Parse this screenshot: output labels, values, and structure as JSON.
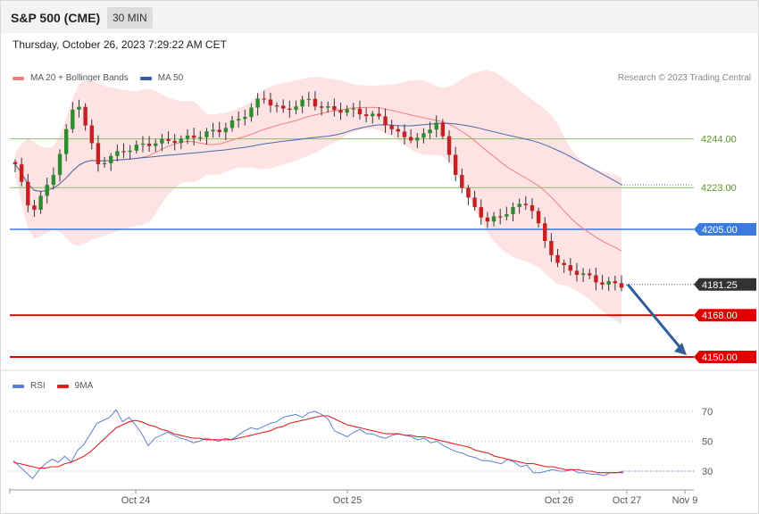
{
  "header": {
    "symbol": "S&P 500 (CME)",
    "interval": "30 MIN",
    "datetime": "Thursday, October 26, 2023 7:29:22 AM CET"
  },
  "legend": {
    "main": [
      {
        "label": "MA 20 + Bollinger Bands",
        "color": "#f08080"
      },
      {
        "label": "MA 50",
        "color": "#3a5fa0"
      }
    ],
    "rsi": [
      {
        "label": "RSI",
        "color": "#5b7fd6"
      },
      {
        "label": "9MA",
        "color": "#e02020"
      }
    ],
    "copyright": "Research © 2023 Trading Central"
  },
  "chart_data": [
    {
      "type": "candlestick",
      "x_axis": {
        "ticks": [
          "Oct 24",
          "Oct 25",
          "Oct 26",
          "Oct 27",
          "Nov 9"
        ]
      },
      "y_range": [
        4145,
        4265
      ],
      "levels": [
        {
          "value": 4244.0,
          "label": "4244.00",
          "color": "#8cc060",
          "style": "thin"
        },
        {
          "value": 4223.0,
          "label": "4223.00",
          "color": "#8cc060",
          "style": "thin"
        },
        {
          "value": 4205.0,
          "label": "4205.00",
          "color": "#3b7be0",
          "style": "support"
        },
        {
          "value": 4181.25,
          "label": "4181.25",
          "color": "#333333",
          "style": "last"
        },
        {
          "value": 4168.0,
          "label": "4168.00",
          "color": "#e00000",
          "style": "target"
        },
        {
          "value": 4150.0,
          "label": "4150.00",
          "color": "#e00000",
          "style": "target"
        }
      ],
      "projection": {
        "from": 4181.25,
        "to": 4150.0,
        "color": "#2f5d9a"
      }
    },
    {
      "type": "line",
      "name": "RSI",
      "y_ticks": [
        70,
        50,
        30
      ],
      "series": [
        {
          "name": "RSI",
          "color": "#5b7fd6",
          "values": [
            37,
            33,
            29,
            25,
            31,
            35,
            38,
            36,
            40,
            36,
            44,
            48,
            55,
            62,
            64,
            66,
            71,
            63,
            66,
            61,
            55,
            47,
            52,
            54,
            56,
            54,
            52,
            51,
            49,
            50,
            52,
            51,
            50,
            52,
            51,
            54,
            57,
            59,
            58,
            60,
            62,
            63,
            66,
            67,
            68,
            66,
            69,
            70,
            68,
            65,
            57,
            55,
            53,
            56,
            58,
            55,
            55,
            53,
            52,
            54,
            55,
            54,
            53,
            51,
            52,
            49,
            50,
            47,
            45,
            43,
            42,
            40,
            39,
            37,
            37,
            36,
            35,
            38,
            36,
            33,
            34,
            29,
            29,
            30,
            31,
            30,
            30,
            31,
            29,
            29,
            28,
            28,
            27,
            29,
            29,
            30
          ]
        },
        {
          "name": "9MA",
          "color": "#e02020",
          "values": [
            36,
            35,
            34,
            33,
            32,
            32,
            33,
            33,
            35,
            36,
            38,
            40,
            43,
            47,
            51,
            55,
            59,
            61,
            63,
            64,
            63,
            61,
            60,
            58,
            57,
            55,
            54,
            53,
            52,
            52,
            51,
            51,
            51,
            51,
            51,
            52,
            53,
            54,
            55,
            56,
            57,
            59,
            60,
            62,
            63,
            64,
            65,
            66,
            67,
            67,
            65,
            63,
            61,
            60,
            59,
            58,
            57,
            56,
            55,
            55,
            55,
            54,
            54,
            53,
            53,
            52,
            51,
            50,
            49,
            48,
            47,
            46,
            44,
            43,
            42,
            40,
            39,
            38,
            37,
            36,
            35,
            35,
            34,
            33,
            33,
            32,
            31,
            31,
            31,
            30,
            30,
            29,
            29,
            29,
            29,
            29
          ]
        }
      ]
    }
  ]
}
